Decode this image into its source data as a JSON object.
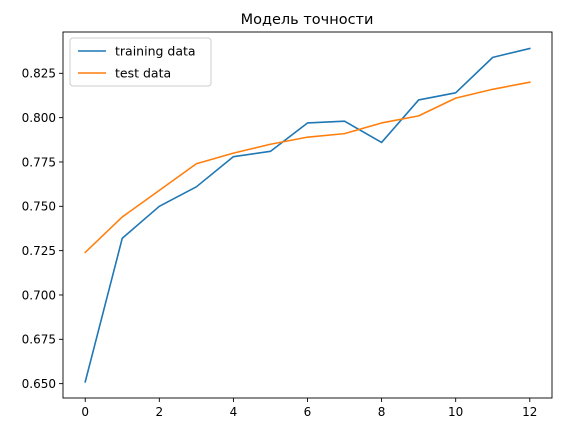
{
  "chart_data": {
    "type": "line",
    "title": "Модель точности",
    "xlabel": "",
    "ylabel": "",
    "xlim": [
      -0.6,
      12.6
    ],
    "ylim": [
      0.6419,
      0.8483
    ],
    "x_ticks": [
      0,
      2,
      4,
      6,
      8,
      10,
      12
    ],
    "y_ticks": [
      0.65,
      0.675,
      0.7,
      0.725,
      0.75,
      0.775,
      0.8,
      0.825
    ],
    "grid": false,
    "legend_position": "top-left",
    "x": [
      0,
      1,
      2,
      3,
      4,
      5,
      6,
      7,
      8,
      9,
      10,
      11,
      12
    ],
    "series": [
      {
        "name": "training data",
        "color": "#1f77b4",
        "values": [
          0.651,
          0.732,
          0.75,
          0.761,
          0.778,
          0.781,
          0.797,
          0.798,
          0.786,
          0.81,
          0.814,
          0.834,
          0.839
        ]
      },
      {
        "name": "test data",
        "color": "#ff7f0e",
        "values": [
          0.724,
          0.744,
          0.759,
          0.774,
          0.78,
          0.785,
          0.789,
          0.791,
          0.797,
          0.801,
          0.811,
          0.816,
          0.82
        ]
      }
    ]
  }
}
